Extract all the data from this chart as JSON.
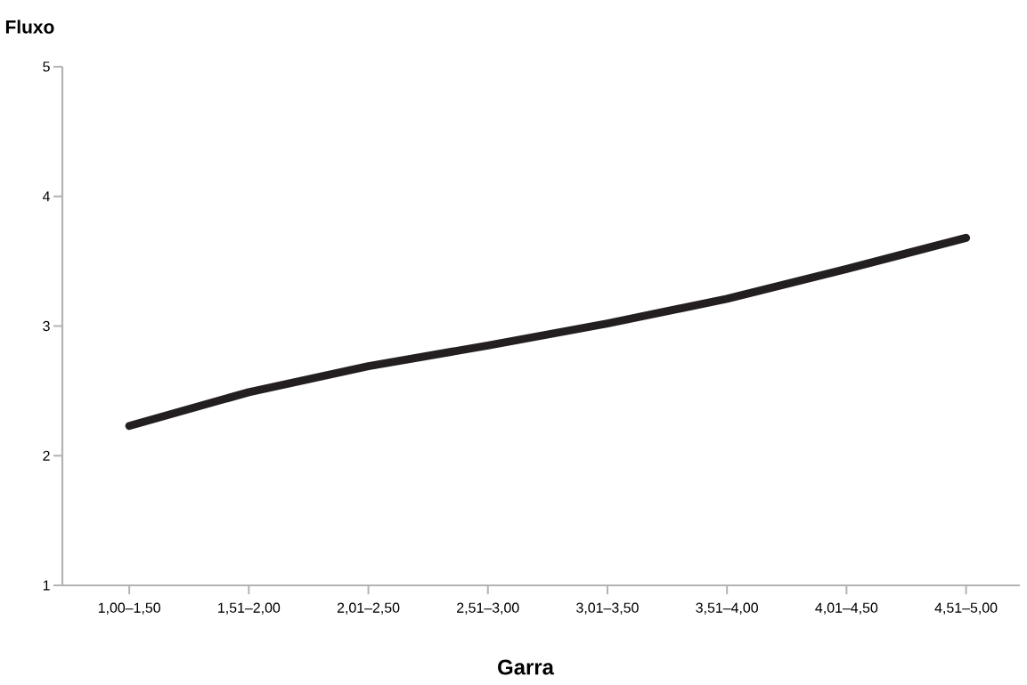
{
  "chart_data": {
    "type": "line",
    "ylabel": "Fluxo",
    "xlabel": "Garra",
    "categories": [
      "1,00–1,50",
      "1,51–2,00",
      "2,01–2,50",
      "2,51–3,00",
      "3,01–3,50",
      "3,51–4,00",
      "4,01–4,50",
      "4,51–5,00"
    ],
    "values": [
      2.23,
      2.49,
      2.69,
      2.85,
      3.02,
      3.21,
      3.44,
      3.68
    ],
    "color": "#231f20",
    "ylim": [
      1,
      5
    ],
    "yticks": [
      1,
      2,
      3,
      4,
      5
    ],
    "grid": false,
    "marker": "none",
    "line_style": "solid"
  }
}
